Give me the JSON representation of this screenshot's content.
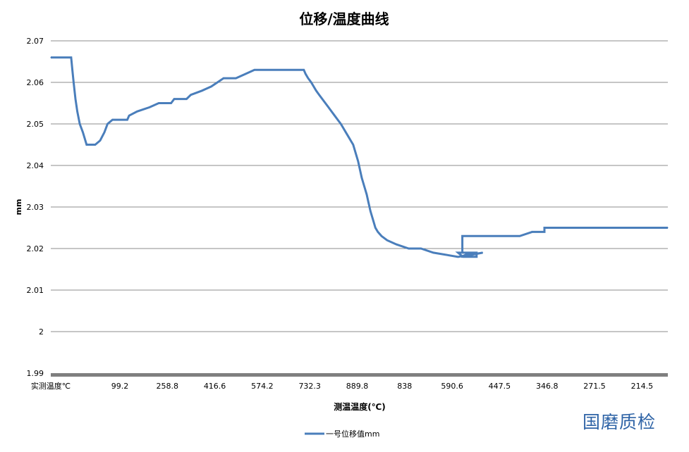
{
  "chart_data": {
    "type": "line",
    "title": "位移/温度曲线",
    "xlabel": "测温温度(℃)",
    "ylabel": "mm",
    "ylim": [
      1.99,
      2.07
    ],
    "y_ticks": [
      "2.07",
      "2.06",
      "2.05",
      "2.04",
      "2.03",
      "2.02",
      "2.01",
      "2",
      "1.99"
    ],
    "x_tick_labels": [
      "实测温度℃",
      "99.2",
      "258.8",
      "416.6",
      "574.2",
      "732.3",
      "889.8",
      "838",
      "590.6",
      "447.5",
      "346.8",
      "271.5",
      "214.5"
    ],
    "grid": true,
    "legend_position": "bottom",
    "series": [
      {
        "name": "一号位移值mm",
        "color": "#4a7ebb",
        "points": [
          [
            0.0,
            2.066
          ],
          [
            0.033,
            2.066
          ],
          [
            0.035,
            2.063
          ],
          [
            0.037,
            2.06
          ],
          [
            0.04,
            2.056
          ],
          [
            0.043,
            2.053
          ],
          [
            0.047,
            2.05
          ],
          [
            0.052,
            2.048
          ],
          [
            0.058,
            2.045
          ],
          [
            0.072,
            2.045
          ],
          [
            0.08,
            2.046
          ],
          [
            0.087,
            2.048
          ],
          [
            0.092,
            2.05
          ],
          [
            0.1,
            2.051
          ],
          [
            0.124,
            2.051
          ],
          [
            0.127,
            2.052
          ],
          [
            0.14,
            2.053
          ],
          [
            0.16,
            2.054
          ],
          [
            0.175,
            2.055
          ],
          [
            0.195,
            2.055
          ],
          [
            0.2,
            2.056
          ],
          [
            0.22,
            2.056
          ],
          [
            0.227,
            2.057
          ],
          [
            0.245,
            2.058
          ],
          [
            0.26,
            2.059
          ],
          [
            0.27,
            2.06
          ],
          [
            0.28,
            2.061
          ],
          [
            0.3,
            2.061
          ],
          [
            0.315,
            2.062
          ],
          [
            0.33,
            2.063
          ],
          [
            0.385,
            2.063
          ],
          [
            0.41,
            2.063
          ],
          [
            0.413,
            2.062
          ],
          [
            0.417,
            2.061
          ],
          [
            0.422,
            2.06
          ],
          [
            0.426,
            2.059
          ],
          [
            0.43,
            2.058
          ],
          [
            0.435,
            2.057
          ],
          [
            0.44,
            2.056
          ],
          [
            0.445,
            2.055
          ],
          [
            0.45,
            2.054
          ],
          [
            0.455,
            2.053
          ],
          [
            0.46,
            2.052
          ],
          [
            0.465,
            2.051
          ],
          [
            0.47,
            2.05
          ],
          [
            0.474,
            2.049
          ],
          [
            0.478,
            2.048
          ],
          [
            0.482,
            2.047
          ],
          [
            0.486,
            2.046
          ],
          [
            0.49,
            2.045
          ],
          [
            0.494,
            2.043
          ],
          [
            0.498,
            2.041
          ],
          [
            0.501,
            2.039
          ],
          [
            0.504,
            2.037
          ],
          [
            0.508,
            2.035
          ],
          [
            0.512,
            2.033
          ],
          [
            0.515,
            2.031
          ],
          [
            0.518,
            2.029
          ],
          [
            0.522,
            2.027
          ],
          [
            0.526,
            2.025
          ],
          [
            0.53,
            2.024
          ],
          [
            0.536,
            2.023
          ],
          [
            0.545,
            2.022
          ],
          [
            0.56,
            2.021
          ],
          [
            0.58,
            2.02
          ],
          [
            0.6,
            2.02
          ],
          [
            0.62,
            2.019
          ],
          [
            0.66,
            2.018
          ],
          [
            0.7,
            2.019
          ],
          [
            0.665,
            2.018
          ],
          [
            0.68,
            2.019
          ],
          [
            0.66,
            2.019
          ],
          [
            0.668,
            2.018
          ],
          [
            0.69,
            2.018
          ],
          [
            0.69,
            2.019
          ],
          [
            0.667,
            2.019
          ],
          [
            0.667,
            2.023
          ],
          [
            0.76,
            2.023
          ],
          [
            0.78,
            2.024
          ],
          [
            0.779,
            2.024
          ],
          [
            0.8,
            2.024
          ],
          [
            0.8,
            2.025
          ],
          [
            1.0,
            2.025
          ]
        ]
      }
    ]
  },
  "watermark": "国磨质检"
}
